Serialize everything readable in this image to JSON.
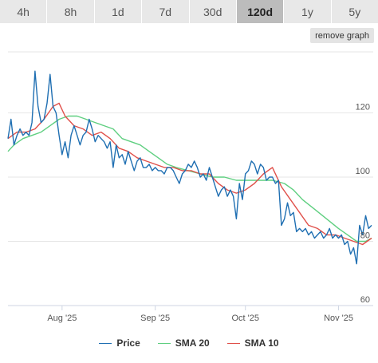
{
  "range_tabs": [
    {
      "label": "4h"
    },
    {
      "label": "8h"
    },
    {
      "label": "1d"
    },
    {
      "label": "7d"
    },
    {
      "label": "30d"
    },
    {
      "label": "120d",
      "active": true
    },
    {
      "label": "1y"
    },
    {
      "label": "5y"
    }
  ],
  "remove_graph_label": "remove graph",
  "colors": {
    "price": "#1f6fb2",
    "sma20": "#5fcf80",
    "sma10": "#e0504a",
    "grid": "#e6e6e6"
  },
  "chart_data": {
    "type": "line",
    "title": "",
    "xlabel": "",
    "ylabel": "",
    "ylim": [
      60,
      139
    ],
    "y_ticks": [
      60,
      80,
      100,
      120
    ],
    "y_ticks_side": "right",
    "x_range": [
      "2025-07-14",
      "2025-11-12"
    ],
    "x_ticks": [
      {
        "date": "2025-08-01",
        "label": "Aug '25"
      },
      {
        "date": "2025-09-01",
        "label": "Sep '25"
      },
      {
        "date": "2025-10-01",
        "label": "Oct '25"
      },
      {
        "date": "2025-11-01",
        "label": "Nov '25"
      }
    ],
    "legend": "bottom-center",
    "series": [
      {
        "name": "Price",
        "color": "#1f6fb2",
        "points": [
          [
            "2025-07-14",
            112
          ],
          [
            "2025-07-15",
            118
          ],
          [
            "2025-07-16",
            110
          ],
          [
            "2025-07-17",
            113
          ],
          [
            "2025-07-18",
            115
          ],
          [
            "2025-07-19",
            113
          ],
          [
            "2025-07-20",
            114
          ],
          [
            "2025-07-21",
            113
          ],
          [
            "2025-07-22",
            117
          ],
          [
            "2025-07-23",
            133
          ],
          [
            "2025-07-24",
            122
          ],
          [
            "2025-07-25",
            117
          ],
          [
            "2025-07-26",
            118
          ],
          [
            "2025-07-27",
            123
          ],
          [
            "2025-07-28",
            132
          ],
          [
            "2025-07-29",
            122
          ],
          [
            "2025-07-30",
            120
          ],
          [
            "2025-07-31",
            113
          ],
          [
            "2025-08-01",
            107
          ],
          [
            "2025-08-02",
            111
          ],
          [
            "2025-08-03",
            106
          ],
          [
            "2025-08-04",
            113
          ],
          [
            "2025-08-05",
            116
          ],
          [
            "2025-08-06",
            113
          ],
          [
            "2025-08-07",
            110
          ],
          [
            "2025-08-08",
            113
          ],
          [
            "2025-08-09",
            114
          ],
          [
            "2025-08-10",
            118
          ],
          [
            "2025-08-11",
            115
          ],
          [
            "2025-08-12",
            111
          ],
          [
            "2025-08-13",
            113
          ],
          [
            "2025-08-14",
            112
          ],
          [
            "2025-08-15",
            111
          ],
          [
            "2025-08-16",
            109
          ],
          [
            "2025-08-17",
            111
          ],
          [
            "2025-08-18",
            103
          ],
          [
            "2025-08-19",
            110
          ],
          [
            "2025-08-20",
            106
          ],
          [
            "2025-08-21",
            107
          ],
          [
            "2025-08-22",
            104
          ],
          [
            "2025-08-23",
            108
          ],
          [
            "2025-08-24",
            105
          ],
          [
            "2025-08-25",
            102
          ],
          [
            "2025-08-26",
            105
          ],
          [
            "2025-08-27",
            106
          ],
          [
            "2025-08-28",
            103
          ],
          [
            "2025-08-29",
            103
          ],
          [
            "2025-08-30",
            104
          ],
          [
            "2025-08-31",
            102
          ],
          [
            "2025-09-01",
            103
          ],
          [
            "2025-09-02",
            102
          ],
          [
            "2025-09-03",
            102
          ],
          [
            "2025-09-04",
            101
          ],
          [
            "2025-09-05",
            103
          ],
          [
            "2025-09-06",
            103
          ],
          [
            "2025-09-07",
            102
          ],
          [
            "2025-09-08",
            100
          ],
          [
            "2025-09-09",
            98
          ],
          [
            "2025-09-10",
            101
          ],
          [
            "2025-09-11",
            102
          ],
          [
            "2025-09-12",
            104
          ],
          [
            "2025-09-13",
            103
          ],
          [
            "2025-09-14",
            105
          ],
          [
            "2025-09-15",
            103
          ],
          [
            "2025-09-16",
            100
          ],
          [
            "2025-09-17",
            101
          ],
          [
            "2025-09-18",
            99
          ],
          [
            "2025-09-19",
            103
          ],
          [
            "2025-09-20",
            100
          ],
          [
            "2025-09-21",
            97
          ],
          [
            "2025-09-22",
            94
          ],
          [
            "2025-09-23",
            96
          ],
          [
            "2025-09-24",
            97
          ],
          [
            "2025-09-25",
            94
          ],
          [
            "2025-09-26",
            96
          ],
          [
            "2025-09-27",
            94
          ],
          [
            "2025-09-28",
            87
          ],
          [
            "2025-09-29",
            98
          ],
          [
            "2025-09-30",
            93
          ],
          [
            "2025-10-01",
            101
          ],
          [
            "2025-10-02",
            102
          ],
          [
            "2025-10-03",
            105
          ],
          [
            "2025-10-04",
            104
          ],
          [
            "2025-10-05",
            101
          ],
          [
            "2025-10-06",
            104
          ],
          [
            "2025-10-07",
            103
          ],
          [
            "2025-10-08",
            99
          ],
          [
            "2025-10-09",
            100
          ],
          [
            "2025-10-10",
            100
          ],
          [
            "2025-10-11",
            98
          ],
          [
            "2025-10-12",
            99
          ],
          [
            "2025-10-13",
            85
          ],
          [
            "2025-10-14",
            87
          ],
          [
            "2025-10-15",
            92
          ],
          [
            "2025-10-16",
            88
          ],
          [
            "2025-10-17",
            89
          ],
          [
            "2025-10-18",
            83
          ],
          [
            "2025-10-19",
            84
          ],
          [
            "2025-10-20",
            83
          ],
          [
            "2025-10-21",
            84
          ],
          [
            "2025-10-22",
            82
          ],
          [
            "2025-10-23",
            83
          ],
          [
            "2025-10-24",
            81
          ],
          [
            "2025-10-25",
            82
          ],
          [
            "2025-10-26",
            83
          ],
          [
            "2025-10-27",
            81
          ],
          [
            "2025-10-28",
            82
          ],
          [
            "2025-10-29",
            84
          ],
          [
            "2025-10-30",
            81
          ],
          [
            "2025-10-31",
            82
          ],
          [
            "2025-11-01",
            81
          ],
          [
            "2025-11-02",
            82
          ],
          [
            "2025-11-03",
            79
          ],
          [
            "2025-11-04",
            80
          ],
          [
            "2025-11-05",
            76
          ],
          [
            "2025-11-06",
            78
          ],
          [
            "2025-11-07",
            73
          ],
          [
            "2025-11-08",
            85
          ],
          [
            "2025-11-09",
            82
          ],
          [
            "2025-11-10",
            88
          ],
          [
            "2025-11-11",
            84
          ],
          [
            "2025-11-12",
            85
          ]
        ]
      },
      {
        "name": "SMA 20",
        "color": "#5fcf80",
        "points": [
          [
            "2025-07-14",
            108
          ],
          [
            "2025-07-16",
            110
          ],
          [
            "2025-07-19",
            112
          ],
          [
            "2025-07-22",
            113
          ],
          [
            "2025-07-25",
            114
          ],
          [
            "2025-07-28",
            116
          ],
          [
            "2025-07-31",
            118
          ],
          [
            "2025-08-03",
            119
          ],
          [
            "2025-08-06",
            119
          ],
          [
            "2025-08-09",
            118
          ],
          [
            "2025-08-12",
            117
          ],
          [
            "2025-08-15",
            116
          ],
          [
            "2025-08-18",
            115
          ],
          [
            "2025-08-21",
            112
          ],
          [
            "2025-08-24",
            111
          ],
          [
            "2025-08-27",
            110
          ],
          [
            "2025-08-30",
            108
          ],
          [
            "2025-09-02",
            106
          ],
          [
            "2025-09-05",
            104
          ],
          [
            "2025-09-08",
            103
          ],
          [
            "2025-09-12",
            102
          ],
          [
            "2025-09-16",
            101
          ],
          [
            "2025-09-20",
            100
          ],
          [
            "2025-09-24",
            100
          ],
          [
            "2025-09-28",
            99
          ],
          [
            "2025-10-02",
            99
          ],
          [
            "2025-10-06",
            99
          ],
          [
            "2025-10-10",
            99
          ],
          [
            "2025-10-14",
            98
          ],
          [
            "2025-10-17",
            96
          ],
          [
            "2025-10-20",
            93
          ],
          [
            "2025-10-24",
            90
          ],
          [
            "2025-10-28",
            87
          ],
          [
            "2025-11-01",
            84
          ],
          [
            "2025-11-04",
            82
          ],
          [
            "2025-11-07",
            80
          ],
          [
            "2025-11-10",
            80
          ],
          [
            "2025-11-12",
            81
          ]
        ]
      },
      {
        "name": "SMA 10",
        "color": "#e0504a",
        "points": [
          [
            "2025-07-14",
            112
          ],
          [
            "2025-07-17",
            114
          ],
          [
            "2025-07-20",
            114
          ],
          [
            "2025-07-23",
            115
          ],
          [
            "2025-07-26",
            118
          ],
          [
            "2025-07-29",
            122
          ],
          [
            "2025-07-31",
            123
          ],
          [
            "2025-08-02",
            119
          ],
          [
            "2025-08-05",
            116
          ],
          [
            "2025-08-08",
            115
          ],
          [
            "2025-08-11",
            113
          ],
          [
            "2025-08-14",
            114
          ],
          [
            "2025-08-17",
            112
          ],
          [
            "2025-08-20",
            109
          ],
          [
            "2025-08-23",
            108
          ],
          [
            "2025-08-26",
            106
          ],
          [
            "2025-08-29",
            105
          ],
          [
            "2025-09-01",
            104
          ],
          [
            "2025-09-04",
            103
          ],
          [
            "2025-09-07",
            103
          ],
          [
            "2025-09-10",
            102
          ],
          [
            "2025-09-13",
            102
          ],
          [
            "2025-09-16",
            101
          ],
          [
            "2025-09-19",
            101
          ],
          [
            "2025-09-22",
            98
          ],
          [
            "2025-09-25",
            96
          ],
          [
            "2025-09-28",
            95
          ],
          [
            "2025-10-01",
            96
          ],
          [
            "2025-10-04",
            98
          ],
          [
            "2025-10-07",
            101
          ],
          [
            "2025-10-10",
            103
          ],
          [
            "2025-10-13",
            97
          ],
          [
            "2025-10-16",
            93
          ],
          [
            "2025-10-19",
            89
          ],
          [
            "2025-10-22",
            85
          ],
          [
            "2025-10-25",
            84
          ],
          [
            "2025-10-28",
            82
          ],
          [
            "2025-10-31",
            82
          ],
          [
            "2025-11-03",
            81
          ],
          [
            "2025-11-06",
            80
          ],
          [
            "2025-11-09",
            79
          ],
          [
            "2025-11-12",
            81
          ]
        ]
      }
    ]
  }
}
